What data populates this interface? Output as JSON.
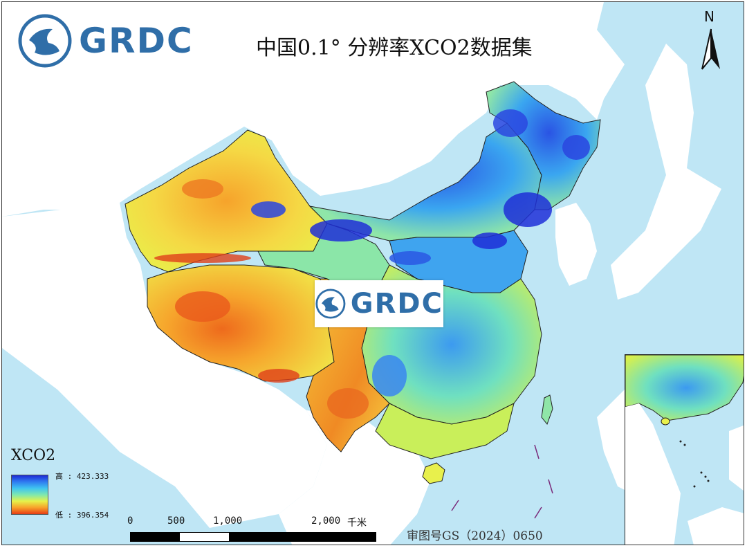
{
  "title": "中国0.1° 分辨率XCO2数据集",
  "logo": {
    "text": "GRDC"
  },
  "north_arrow": {
    "label": "N"
  },
  "legend": {
    "title": "XCO2",
    "high_label": "高 : 423.333",
    "low_label": "低 : 396.354",
    "high_value": 423.333,
    "low_value": 396.354,
    "colors": [
      "#1d2bd6",
      "#2f7bf0",
      "#3fc4f0",
      "#7ee7b0",
      "#e6f24a",
      "#f8a12a",
      "#e63b14"
    ]
  },
  "scale_bar": {
    "ticks": [
      "0",
      "500",
      "1,000",
      "2,000"
    ],
    "unit": "千米"
  },
  "approval_number": "审图号GS（2024）0650",
  "colors": {
    "ocean": "#bfe6f5",
    "neighbor_land": "#ffffff",
    "boundary": "#222222"
  }
}
